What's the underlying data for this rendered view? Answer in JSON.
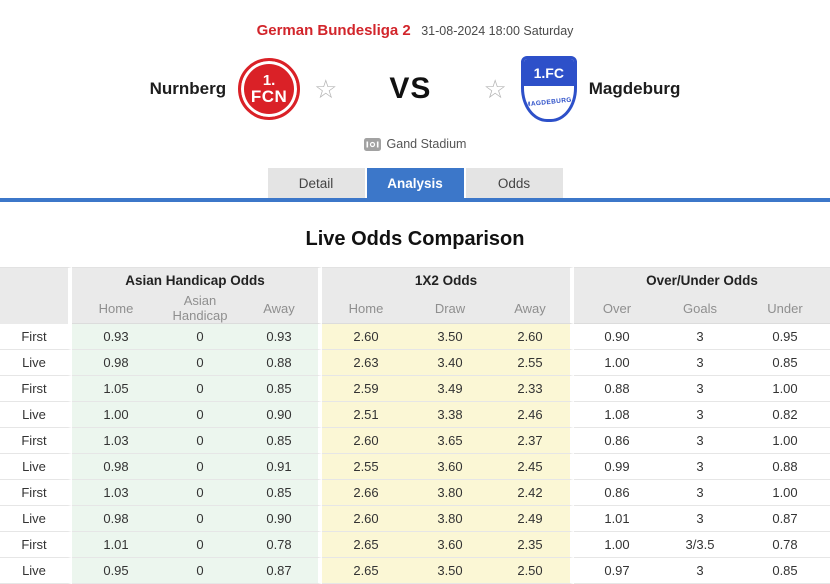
{
  "header": {
    "league": "German Bundesliga 2",
    "datetime": "31-08-2024 18:00 Saturday"
  },
  "match": {
    "home_team": "Nurnberg",
    "away_team": "Magdeburg",
    "vs_label": "VS",
    "stadium": "Gand Stadium",
    "star_icon": "☆",
    "home_logo": {
      "top": "1.",
      "bottom": "FCN"
    },
    "away_logo": {
      "top": "1.FC",
      "bottom": "MAGDEBURG"
    }
  },
  "tabs": [
    {
      "label": "Detail",
      "active": false
    },
    {
      "label": "Analysis",
      "active": true
    },
    {
      "label": "Odds",
      "active": false
    }
  ],
  "section_title": "Live Odds Comparison",
  "odds_table": {
    "groups": [
      {
        "label": "Asian Handicap Odds",
        "columns": [
          "Home",
          "Asian Handicap",
          "Away"
        ]
      },
      {
        "label": "1X2 Odds",
        "columns": [
          "Home",
          "Draw",
          "Away"
        ]
      },
      {
        "label": "Over/Under Odds",
        "columns": [
          "Over",
          "Goals",
          "Under"
        ]
      }
    ],
    "rows": [
      {
        "label": "First",
        "asian_handicap": [
          "0.93",
          "0",
          "0.93"
        ],
        "x12": [
          "2.60",
          "3.50",
          "2.60"
        ],
        "over_under": [
          "0.90",
          "3",
          "0.95"
        ]
      },
      {
        "label": "Live",
        "asian_handicap": [
          "0.98",
          "0",
          "0.88"
        ],
        "x12": [
          "2.63",
          "3.40",
          "2.55"
        ],
        "over_under": [
          "1.00",
          "3",
          "0.85"
        ]
      },
      {
        "label": "First",
        "asian_handicap": [
          "1.05",
          "0",
          "0.85"
        ],
        "x12": [
          "2.59",
          "3.49",
          "2.33"
        ],
        "over_under": [
          "0.88",
          "3",
          "1.00"
        ]
      },
      {
        "label": "Live",
        "asian_handicap": [
          "1.00",
          "0",
          "0.90"
        ],
        "x12": [
          "2.51",
          "3.38",
          "2.46"
        ],
        "over_under": [
          "1.08",
          "3",
          "0.82"
        ]
      },
      {
        "label": "First",
        "asian_handicap": [
          "1.03",
          "0",
          "0.85"
        ],
        "x12": [
          "2.60",
          "3.65",
          "2.37"
        ],
        "over_under": [
          "0.86",
          "3",
          "1.00"
        ]
      },
      {
        "label": "Live",
        "asian_handicap": [
          "0.98",
          "0",
          "0.91"
        ],
        "x12": [
          "2.55",
          "3.60",
          "2.45"
        ],
        "over_under": [
          "0.99",
          "3",
          "0.88"
        ]
      },
      {
        "label": "First",
        "asian_handicap": [
          "1.03",
          "0",
          "0.85"
        ],
        "x12": [
          "2.66",
          "3.80",
          "2.42"
        ],
        "over_under": [
          "0.86",
          "3",
          "1.00"
        ]
      },
      {
        "label": "Live",
        "asian_handicap": [
          "0.98",
          "0",
          "0.90"
        ],
        "x12": [
          "2.60",
          "3.80",
          "2.49"
        ],
        "over_under": [
          "1.01",
          "3",
          "0.87"
        ]
      },
      {
        "label": "First",
        "asian_handicap": [
          "1.01",
          "0",
          "0.78"
        ],
        "x12": [
          "2.65",
          "3.60",
          "2.35"
        ],
        "over_under": [
          "1.00",
          "3/3.5",
          "0.78"
        ]
      },
      {
        "label": "Live",
        "asian_handicap": [
          "0.95",
          "0",
          "0.87"
        ],
        "x12": [
          "2.65",
          "3.50",
          "2.50"
        ],
        "over_under": [
          "0.97",
          "3",
          "0.85"
        ]
      }
    ]
  },
  "colors": {
    "accent_blue": "#3c77c9",
    "league_red": "#d2252b",
    "home_logo_red": "#da2127",
    "away_logo_blue": "#2d50c9",
    "asian_handicap_bg": "#ecf6ee",
    "x12_bg": "#fbf7d5",
    "table_header_bg": "#eaeaea"
  }
}
